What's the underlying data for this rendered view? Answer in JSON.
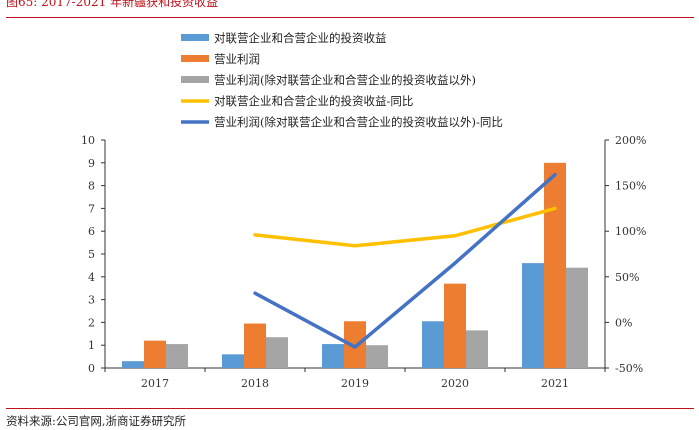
{
  "header": {
    "title": "图65:    2017-2021 年新疆获和投资收益"
  },
  "footer": {
    "source": "资料来源:公司官网,浙商证券研究所"
  },
  "colors": {
    "bar_jv": "#5b9bd5",
    "bar_op": "#ed7d31",
    "bar_excl": "#a5a5a5",
    "line_jv": "#ffc000",
    "line_excl": "#4472c4",
    "accent": "#c0141c"
  },
  "chart_data": {
    "type": "bar",
    "title": "",
    "categories": [
      "2017",
      "2018",
      "2019",
      "2020",
      "2021"
    ],
    "legend_position": "top",
    "y_left": {
      "min": 0,
      "max": 10,
      "ticks": [
        "0",
        "1",
        "2",
        "3",
        "4",
        "5",
        "6",
        "7",
        "8",
        "9",
        "10"
      ]
    },
    "y_right": {
      "min": -50,
      "max": 200,
      "ticks": [
        "-50%",
        "0%",
        "50%",
        "100%",
        "150%",
        "200%"
      ]
    },
    "series": [
      {
        "name": "对联营企业和合营企业的投资收益",
        "kind": "bar",
        "axis": "left",
        "color_key": "bar_jv",
        "values": [
          0.3,
          0.6,
          1.05,
          2.05,
          4.6
        ]
      },
      {
        "name": "营业利润",
        "kind": "bar",
        "axis": "left",
        "color_key": "bar_op",
        "values": [
          1.2,
          1.95,
          2.05,
          3.7,
          9.0
        ]
      },
      {
        "name": "营业利润(除对联营企业和合营企业的投资收益以外)",
        "kind": "bar",
        "axis": "left",
        "color_key": "bar_excl",
        "values": [
          1.05,
          1.35,
          1.0,
          1.65,
          4.4
        ]
      },
      {
        "name": "对联营企业和合营企业的投资收益-同比",
        "kind": "line",
        "axis": "right",
        "color_key": "line_jv",
        "values": [
          null,
          96,
          84,
          95,
          125
        ]
      },
      {
        "name": "营业利润(除对联营企业和合营企业的投资收益以外)-同比",
        "kind": "line",
        "axis": "right",
        "color_key": "line_excl",
        "values": [
          null,
          32,
          -27,
          65,
          162
        ]
      }
    ]
  }
}
